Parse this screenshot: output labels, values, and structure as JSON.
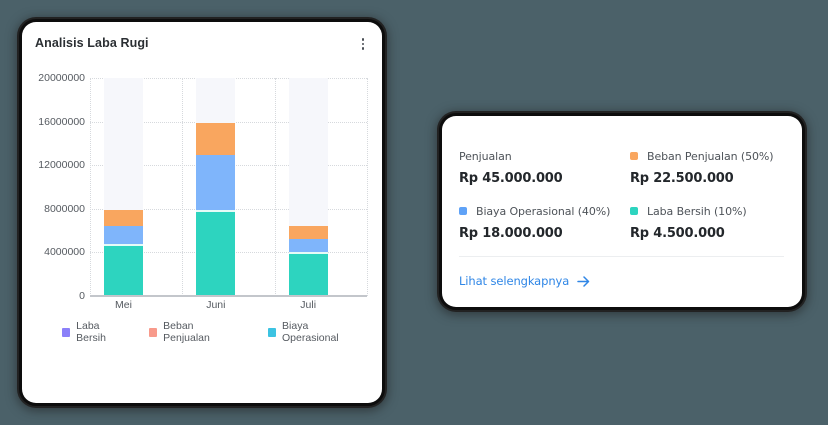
{
  "chart_card": {
    "title": "Analisis Laba Rugi",
    "menu_icon": "more-vertical-icon"
  },
  "chart_data": {
    "type": "bar",
    "stacked": true,
    "title": "Analisis Laba Rugi",
    "xlabel": "",
    "ylabel": "",
    "categories": [
      "Mei",
      "Juni",
      "Juli"
    ],
    "series": [
      {
        "name": "Laba Bersih",
        "values": [
          4800000,
          7900000,
          4050000
        ],
        "bar_color": "#2dd4bf",
        "legend_color": "#8b80f9"
      },
      {
        "name": "Biaya Operasional",
        "values": [
          1650000,
          5000000,
          1200000
        ],
        "bar_color": "#7fb5fb",
        "legend_color": "#3cc3e2"
      },
      {
        "name": "Beban Penjualan",
        "values": [
          1450000,
          2950000,
          1200000
        ],
        "bar_color": "#f9a65f",
        "legend_color": "#f89a8b"
      }
    ],
    "totals": [
      7900000,
      15850000,
      6450000
    ],
    "ylim": [
      0,
      20000000
    ],
    "yticks": [
      "0",
      "4000000",
      "8000000",
      "12000000",
      "16000000",
      "20000000"
    ],
    "grid": true,
    "legend_position": "bottom",
    "legend": [
      "Laba Bersih",
      "Beban Penjualan",
      "Biaya Operasional"
    ]
  },
  "summary_card": {
    "items": [
      {
        "label": "Penjualan",
        "value": "Rp 45.000.000",
        "color": null
      },
      {
        "label": "Beban Penjualan (50%)",
        "value": "Rp 22.500.000",
        "color": "#f9a65f"
      },
      {
        "label": "Biaya Operasional (40%)",
        "value": "Rp 18.000.000",
        "color": "#5fa2f7"
      },
      {
        "label": "Laba Bersih (10%)",
        "value": "Rp 4.500.000",
        "color": "#2dd4bf"
      }
    ],
    "link_label": "Lihat selengkapnya",
    "link_icon": "arrow-right-icon",
    "link_color": "#2f86e6"
  }
}
